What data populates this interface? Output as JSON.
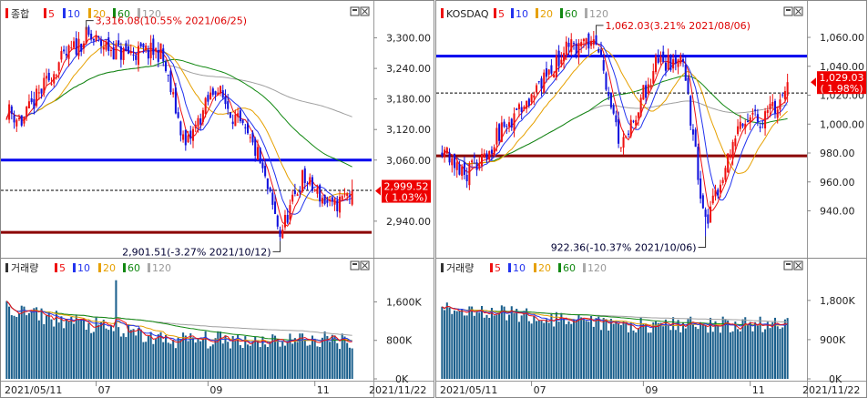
{
  "charts": [
    {
      "id": "kospi",
      "legend": {
        "name": "종합",
        "mas": [
          "5",
          "10",
          "20",
          "60",
          "120"
        ]
      },
      "ylim": [
        2895,
        3335
      ],
      "ticks": [
        "3,300.00",
        "3,240.00",
        "3,180.00",
        "3,120.00",
        "3,060.00",
        "2,940.00"
      ],
      "tick_values": [
        3300,
        3240,
        3180,
        3120,
        3060,
        2940
      ],
      "hlines": [
        {
          "value": 3060,
          "color": "#0000ee",
          "style": "solid"
        },
        {
          "value": 2918,
          "color": "#8b0000",
          "style": "solid"
        },
        {
          "value": 3000.5,
          "color": "#000000",
          "style": "dashed"
        }
      ],
      "annot_high": "3,316.08(10.55% 2021/06/25)",
      "annot_low": "2,901.51(-3.27% 2021/10/12)",
      "price_box": {
        "value": "2,999.52",
        "change": "( 1.03%)"
      },
      "volume": {
        "legend": {
          "name": "거래량",
          "mas": [
            "5",
            "10",
            "20",
            "60",
            "120"
          ]
        },
        "ticks": [
          "1,600K",
          "800K",
          "0K"
        ],
        "tick_values": [
          1600,
          800,
          0
        ],
        "ymax": 2120
      },
      "xticks": [
        "2021/05/11",
        "07",
        "09",
        "11"
      ],
      "last_date": "2021/11/22"
    },
    {
      "id": "kosdaq",
      "legend": {
        "name": "KOSDAQ",
        "mas": [
          "5",
          "10",
          "20",
          "60",
          "120"
        ]
      },
      "ylim": [
        917,
        1072
      ],
      "ticks": [
        "1,060.00",
        "1,040.00",
        "1,020.00",
        "1,000.00",
        "980.00",
        "960.00",
        "940.00"
      ],
      "tick_values": [
        1060,
        1040,
        1020,
        1000,
        980,
        960,
        940
      ],
      "hlines": [
        {
          "value": 1047,
          "color": "#0000ee",
          "style": "solid"
        },
        {
          "value": 978,
          "color": "#8b0000",
          "style": "solid"
        },
        {
          "value": 1021.5,
          "color": "#000000",
          "style": "dashed"
        }
      ],
      "annot_high": "1,062.03(3.21% 2021/08/06)",
      "annot_low": "922.36(-10.37% 2021/10/06)",
      "price_box": {
        "value": "1,029.03",
        "change": "( 1.98%)"
      },
      "volume": {
        "legend": {
          "name": "거래량",
          "mas": [
            "5",
            "10",
            "20",
            "60",
            "120"
          ]
        },
        "ticks": [
          "1,800K",
          "900K",
          "0K"
        ],
        "tick_values": [
          1800,
          900,
          0
        ],
        "ymax": 2340
      },
      "xticks": [
        "2021/05/11",
        "07",
        "09",
        "11"
      ],
      "last_date": "2021/11/22"
    }
  ],
  "colors": {
    "up": "#ee1111",
    "down": "#1111dd",
    "ma5": "#ee1111",
    "ma10": "#2233ee",
    "ma20": "#e6a000",
    "ma60": "#118811",
    "ma120": "#a0a0a0",
    "volume_bar": "#1a5f8c"
  },
  "chart_data": [
    {
      "type": "candlestick",
      "title": "종합",
      "x_range": [
        "2021/05/11",
        "2021/11/22"
      ],
      "ylim": [
        2895,
        3335
      ],
      "series_close_keypoints": [
        {
          "date": "2021/05/11",
          "value": 3160
        },
        {
          "date": "2021/05/20",
          "value": 3135
        },
        {
          "date": "2021/06/10",
          "value": 3250
        },
        {
          "date": "2021/06/25",
          "value": 3302
        },
        {
          "date": "2021/07/15",
          "value": 3270
        },
        {
          "date": "2021/08/06",
          "value": 3272
        },
        {
          "date": "2021/08/20",
          "value": 3085
        },
        {
          "date": "2021/09/06",
          "value": 3205
        },
        {
          "date": "2021/09/30",
          "value": 3070
        },
        {
          "date": "2021/10/12",
          "value": 2915
        },
        {
          "date": "2021/10/25",
          "value": 3025
        },
        {
          "date": "2021/11/10",
          "value": 2965
        },
        {
          "date": "2021/11/22",
          "value": 3000
        }
      ],
      "high": {
        "value": 3316.08,
        "change_pct": 10.55,
        "date": "2021/06/25"
      },
      "low": {
        "value": 2901.51,
        "change_pct": -3.27,
        "date": "2021/10/12"
      },
      "last": {
        "value": 2999.52,
        "change_pct": 1.03
      }
    },
    {
      "type": "candlestick",
      "title": "KOSDAQ",
      "x_range": [
        "2021/05/11",
        "2021/11/22"
      ],
      "ylim": [
        917,
        1072
      ],
      "series_close_keypoints": [
        {
          "date": "2021/05/11",
          "value": 985
        },
        {
          "date": "2021/05/25",
          "value": 965
        },
        {
          "date": "2021/06/25",
          "value": 1012
        },
        {
          "date": "2021/07/20",
          "value": 1050
        },
        {
          "date": "2021/08/06",
          "value": 1058
        },
        {
          "date": "2021/08/20",
          "value": 985
        },
        {
          "date": "2021/09/10",
          "value": 1045
        },
        {
          "date": "2021/09/24",
          "value": 1040
        },
        {
          "date": "2021/10/06",
          "value": 930
        },
        {
          "date": "2021/10/25",
          "value": 1000
        },
        {
          "date": "2021/11/10",
          "value": 1005
        },
        {
          "date": "2021/11/22",
          "value": 1029
        }
      ],
      "high": {
        "value": 1062.03,
        "change_pct": 3.21,
        "date": "2021/08/06"
      },
      "low": {
        "value": 922.36,
        "change_pct": -10.37,
        "date": "2021/10/06"
      },
      "last": {
        "value": 1029.03,
        "change_pct": 1.98
      }
    }
  ]
}
